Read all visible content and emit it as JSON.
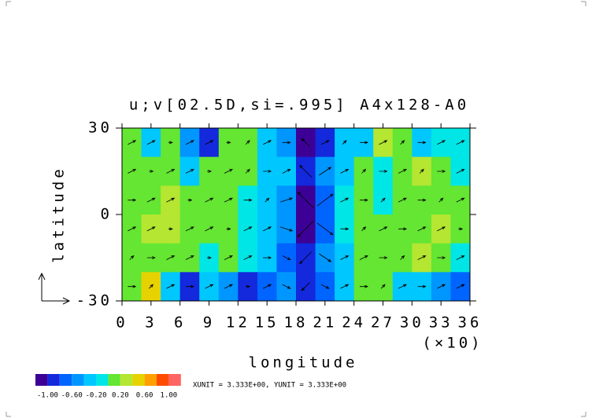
{
  "chart_data": {
    "type": "contour-vector",
    "title": "u;v[02.5D,si=.995] A4x128-A0",
    "xlabel": "longitude",
    "ylabel": "latitude",
    "xscale_note": "(×10)",
    "unit_note": "XUNIT = 3.333E+00, YUNIT = 3.333E+00",
    "xlim": [
      0,
      36
    ],
    "ylim": [
      -30,
      30
    ],
    "xticks": [
      0,
      3,
      6,
      9,
      12,
      15,
      18,
      21,
      24,
      27,
      30,
      33,
      36
    ],
    "yticks": [
      -30,
      0,
      30
    ],
    "levels": [
      -1,
      -0.8,
      -0.6,
      -0.4,
      -0.2,
      0,
      0.2,
      0.4,
      0.6,
      0.8,
      1
    ],
    "colors": [
      "#3c0096",
      "#1428dc",
      "#0064ff",
      "#0096ff",
      "#00c8ff",
      "#00e6e6",
      "#64e632",
      "#b4e632",
      "#e6d200",
      "#ffa000",
      "#ff4b00",
      "#ff6464"
    ],
    "colorbar_ticks": [
      {
        "value": -1,
        "label": "-1.00"
      },
      {
        "value": -0.6,
        "label": "-0.60"
      },
      {
        "value": -0.2,
        "label": "-0.20"
      },
      {
        "value": 0.2,
        "label": "0.20"
      },
      {
        "value": 0.6,
        "label": "0.60"
      },
      {
        "value": 1,
        "label": "1.00"
      }
    ],
    "field": [
      [
        0.1,
        -0.3,
        0.1,
        -0.5,
        -0.9,
        0.1,
        0.1,
        -0.3,
        -0.5,
        -1.2,
        -0.9,
        -0.3,
        -0.3,
        0.3,
        0.1,
        -0.3,
        -0.1,
        -0.1
      ],
      [
        0.1,
        0.1,
        0.1,
        -0.3,
        0.1,
        0.1,
        0.1,
        -0.3,
        -0.3,
        -0.9,
        -0.5,
        -0.3,
        0.1,
        -0.1,
        0.1,
        0.3,
        0.1,
        -0.1
      ],
      [
        0.1,
        0.1,
        0.3,
        0.1,
        0.1,
        0.1,
        -0.1,
        -0.3,
        -0.5,
        -1.2,
        -0.7,
        -0.1,
        0.1,
        -0.1,
        0.1,
        0.1,
        0.1,
        0.1
      ],
      [
        0.1,
        0.3,
        0.3,
        0.1,
        0.1,
        0.1,
        -0.1,
        -0.3,
        -0.5,
        -1.2,
        -0.7,
        -0.1,
        0.1,
        0.1,
        0.1,
        0.1,
        0.3,
        0.1
      ],
      [
        0.1,
        0.1,
        0.1,
        0.1,
        -0.1,
        0.1,
        -0.1,
        -0.3,
        -0.7,
        -0.9,
        -0.5,
        -0.3,
        0.1,
        0.1,
        0.1,
        0.3,
        0.1,
        -0.1
      ],
      [
        0.1,
        0.5,
        -0.3,
        -0.9,
        -0.3,
        -0.5,
        -0.9,
        -0.7,
        -0.5,
        -0.9,
        -0.7,
        -0.3,
        0.1,
        0.1,
        -0.3,
        -0.3,
        -0.5,
        -0.7
      ]
    ],
    "u": [
      [
        2,
        2,
        1,
        2,
        2,
        1,
        1,
        2,
        2,
        -2,
        2,
        1,
        2,
        2,
        1,
        2,
        2,
        2
      ],
      [
        2,
        1,
        2,
        2,
        1,
        2,
        1,
        2,
        2,
        -3,
        3,
        2,
        1,
        2,
        2,
        1,
        2,
        2
      ],
      [
        2,
        2,
        2,
        1,
        2,
        2,
        2,
        1,
        3,
        -4,
        4,
        2,
        2,
        1,
        2,
        2,
        1,
        2
      ],
      [
        2,
        2,
        1,
        2,
        2,
        1,
        2,
        2,
        3,
        -4,
        4,
        2,
        1,
        2,
        2,
        2,
        2,
        1
      ],
      [
        1,
        2,
        2,
        2,
        1,
        2,
        2,
        2,
        2,
        -3,
        3,
        2,
        2,
        2,
        1,
        2,
        2,
        2
      ],
      [
        2,
        1,
        2,
        2,
        2,
        2,
        1,
        2,
        2,
        -2,
        2,
        2,
        2,
        1,
        2,
        2,
        2,
        2
      ]
    ],
    "v": [
      [
        1,
        1,
        0,
        1,
        1,
        0,
        1,
        1,
        0,
        2,
        1,
        1,
        0,
        1,
        1,
        0,
        1,
        1
      ],
      [
        1,
        0,
        1,
        1,
        0,
        1,
        1,
        0,
        1,
        3,
        2,
        1,
        1,
        0,
        1,
        1,
        0,
        1
      ],
      [
        0,
        1,
        1,
        0,
        1,
        1,
        0,
        1,
        1,
        4,
        3,
        1,
        0,
        1,
        1,
        0,
        1,
        1
      ],
      [
        1,
        1,
        0,
        1,
        1,
        0,
        1,
        1,
        -1,
        -4,
        -3,
        0,
        1,
        1,
        0,
        1,
        1,
        0
      ],
      [
        1,
        0,
        1,
        1,
        0,
        1,
        1,
        0,
        -1,
        -3,
        -2,
        1,
        1,
        0,
        1,
        1,
        0,
        1
      ],
      [
        0,
        1,
        1,
        0,
        1,
        1,
        0,
        1,
        -1,
        -2,
        -1,
        1,
        0,
        1,
        1,
        0,
        1,
        1
      ]
    ]
  }
}
